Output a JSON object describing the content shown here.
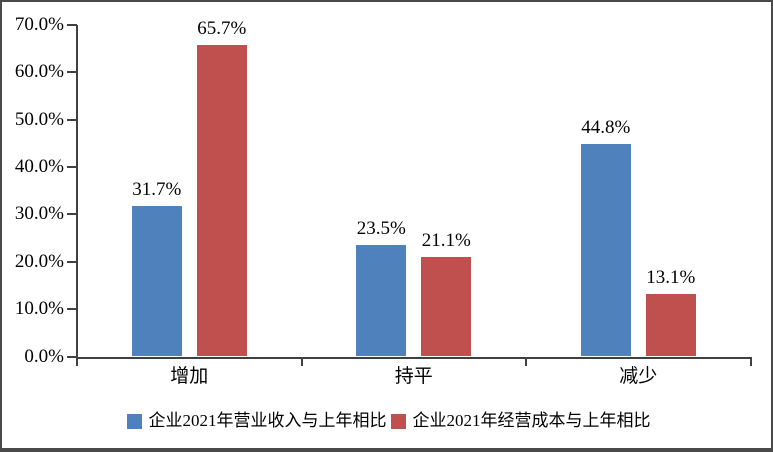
{
  "chart_data": {
    "type": "bar",
    "categories": [
      "增加",
      "持平",
      "减少"
    ],
    "category_keys": [
      "increase",
      "flat",
      "decrease"
    ],
    "series": [
      {
        "key": "revenue",
        "name": "企业2021年营业收入与上年相比",
        "color": "#4F81BD",
        "values": [
          31.7,
          23.5,
          44.8
        ]
      },
      {
        "key": "cost",
        "name": "企业2021年经营成本与上年相比",
        "color": "#C0504D",
        "values": [
          65.7,
          21.1,
          13.1
        ]
      }
    ],
    "data_labels": [
      [
        "31.7%",
        "23.5%",
        "44.8%"
      ],
      [
        "65.7%",
        "21.1%",
        "13.1%"
      ]
    ],
    "y_axis": {
      "min": 0,
      "max": 70,
      "step": 10,
      "tick_labels": [
        "0.0%",
        "10.0%",
        "20.0%",
        "30.0%",
        "40.0%",
        "50.0%",
        "60.0%",
        "70.0%"
      ]
    },
    "grid": false,
    "legend_position": "bottom",
    "axis_color": "#404040",
    "background_color": "#ffffff"
  }
}
